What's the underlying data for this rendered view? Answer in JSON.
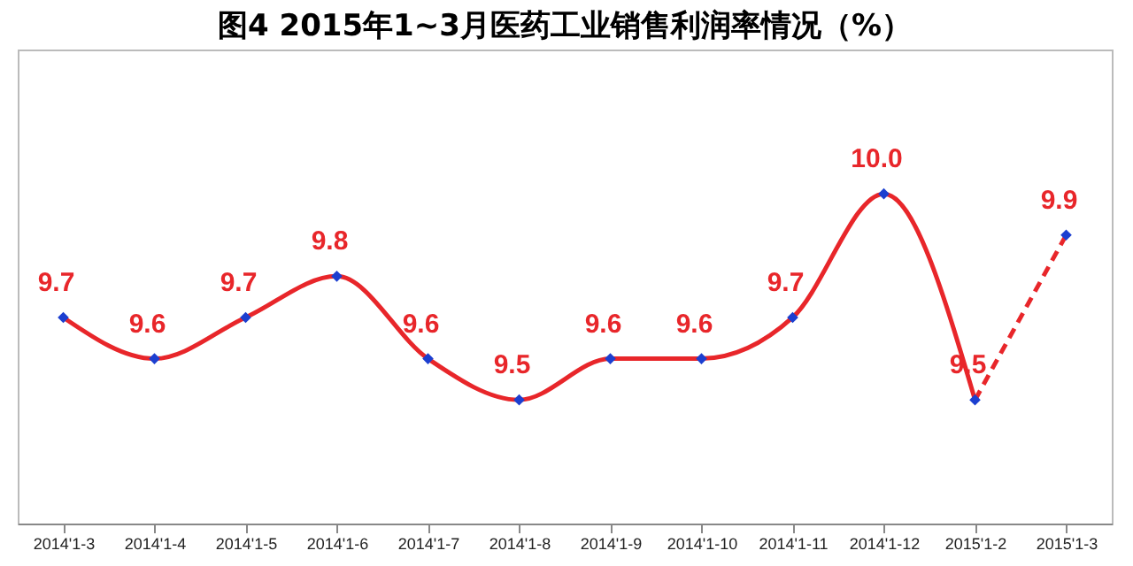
{
  "chart_data": {
    "type": "line",
    "title": "图4  2015年1~3月医药工业销售利润率情况（%）",
    "categories": [
      "2014'1-3",
      "2014'1-4",
      "2014'1-5",
      "2014'1-6",
      "2014'1-7",
      "2014'1-8",
      "2014'1-9",
      "2014'1-10",
      "2014'1-11",
      "2014'1-12",
      "2015'1-2",
      "2015'1-3"
    ],
    "series": [
      {
        "color": "#e8262a",
        "line_style": "solid",
        "values": [
          9.7,
          9.6,
          9.7,
          9.8,
          9.6,
          9.5,
          9.6,
          9.6,
          9.7,
          10.0,
          9.5,
          null
        ]
      },
      {
        "color": "#e8262a",
        "line_style": "dashed",
        "values": [
          null,
          null,
          null,
          null,
          null,
          null,
          null,
          null,
          null,
          null,
          9.5,
          9.9
        ]
      },
      {
        "type": "scatter",
        "color": "#1c3fd0",
        "marker": "diamond",
        "values": [
          9.7,
          9.6,
          9.7,
          9.8,
          9.6,
          9.5,
          9.6,
          9.6,
          9.7,
          10.0,
          9.5,
          9.9
        ],
        "value_labels": [
          "9.7",
          "9.6",
          "9.7",
          "9.8",
          "9.6",
          "9.5",
          "9.6",
          "9.6",
          "9.7",
          "10.0",
          "9.5",
          "9.9"
        ]
      }
    ],
    "ylim": [
      9.2,
      10.35
    ],
    "tick_labels": "x",
    "grid": false
  }
}
